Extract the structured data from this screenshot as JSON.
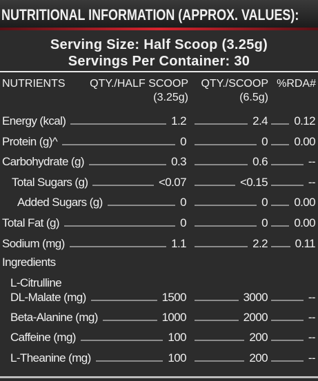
{
  "header": {
    "title": "NUTRITIONAL INFORMATION (APPROX. VALUES):",
    "serving_size": "Serving Size: Half Scoop (3.25g)",
    "servings_per_container": "Servings Per Container: 30"
  },
  "table": {
    "columns": [
      "NUTRIENTS",
      "QTY./HALF SCOOP\n(3.25g)",
      "QTY./SCOOP\n(6.5g)",
      "%RDA#"
    ],
    "rows": [
      [
        "Energy (kcal)",
        "1.2",
        "2.4",
        "0.12"
      ],
      [
        "Protein (g)^",
        "0",
        "0",
        "0.00"
      ],
      [
        "Carbohydrate (g)",
        "0.3",
        "0.6",
        "--"
      ],
      [
        "Total Sugars (g)",
        "<0.07",
        "<0.15",
        "--"
      ],
      [
        "Added Sugars (g)",
        "0",
        "0",
        "0.00"
      ],
      [
        "Total Fat (g)",
        "0",
        "0",
        "0.00"
      ],
      [
        "Sodium (mg)",
        "1.1",
        "2.2",
        "0.11"
      ]
    ],
    "section": "Ingredients",
    "ingredients": [
      [
        "L-Citrulline\nDL-Malate (mg)",
        "1500",
        "3000",
        "--"
      ],
      [
        "Beta-Alanine (mg)",
        "1000",
        "2000",
        "--"
      ],
      [
        "Caffeine (mg)",
        "100",
        "200",
        "--"
      ],
      [
        "L-Theanine (mg)",
        "100",
        "200",
        "--"
      ]
    ]
  }
}
